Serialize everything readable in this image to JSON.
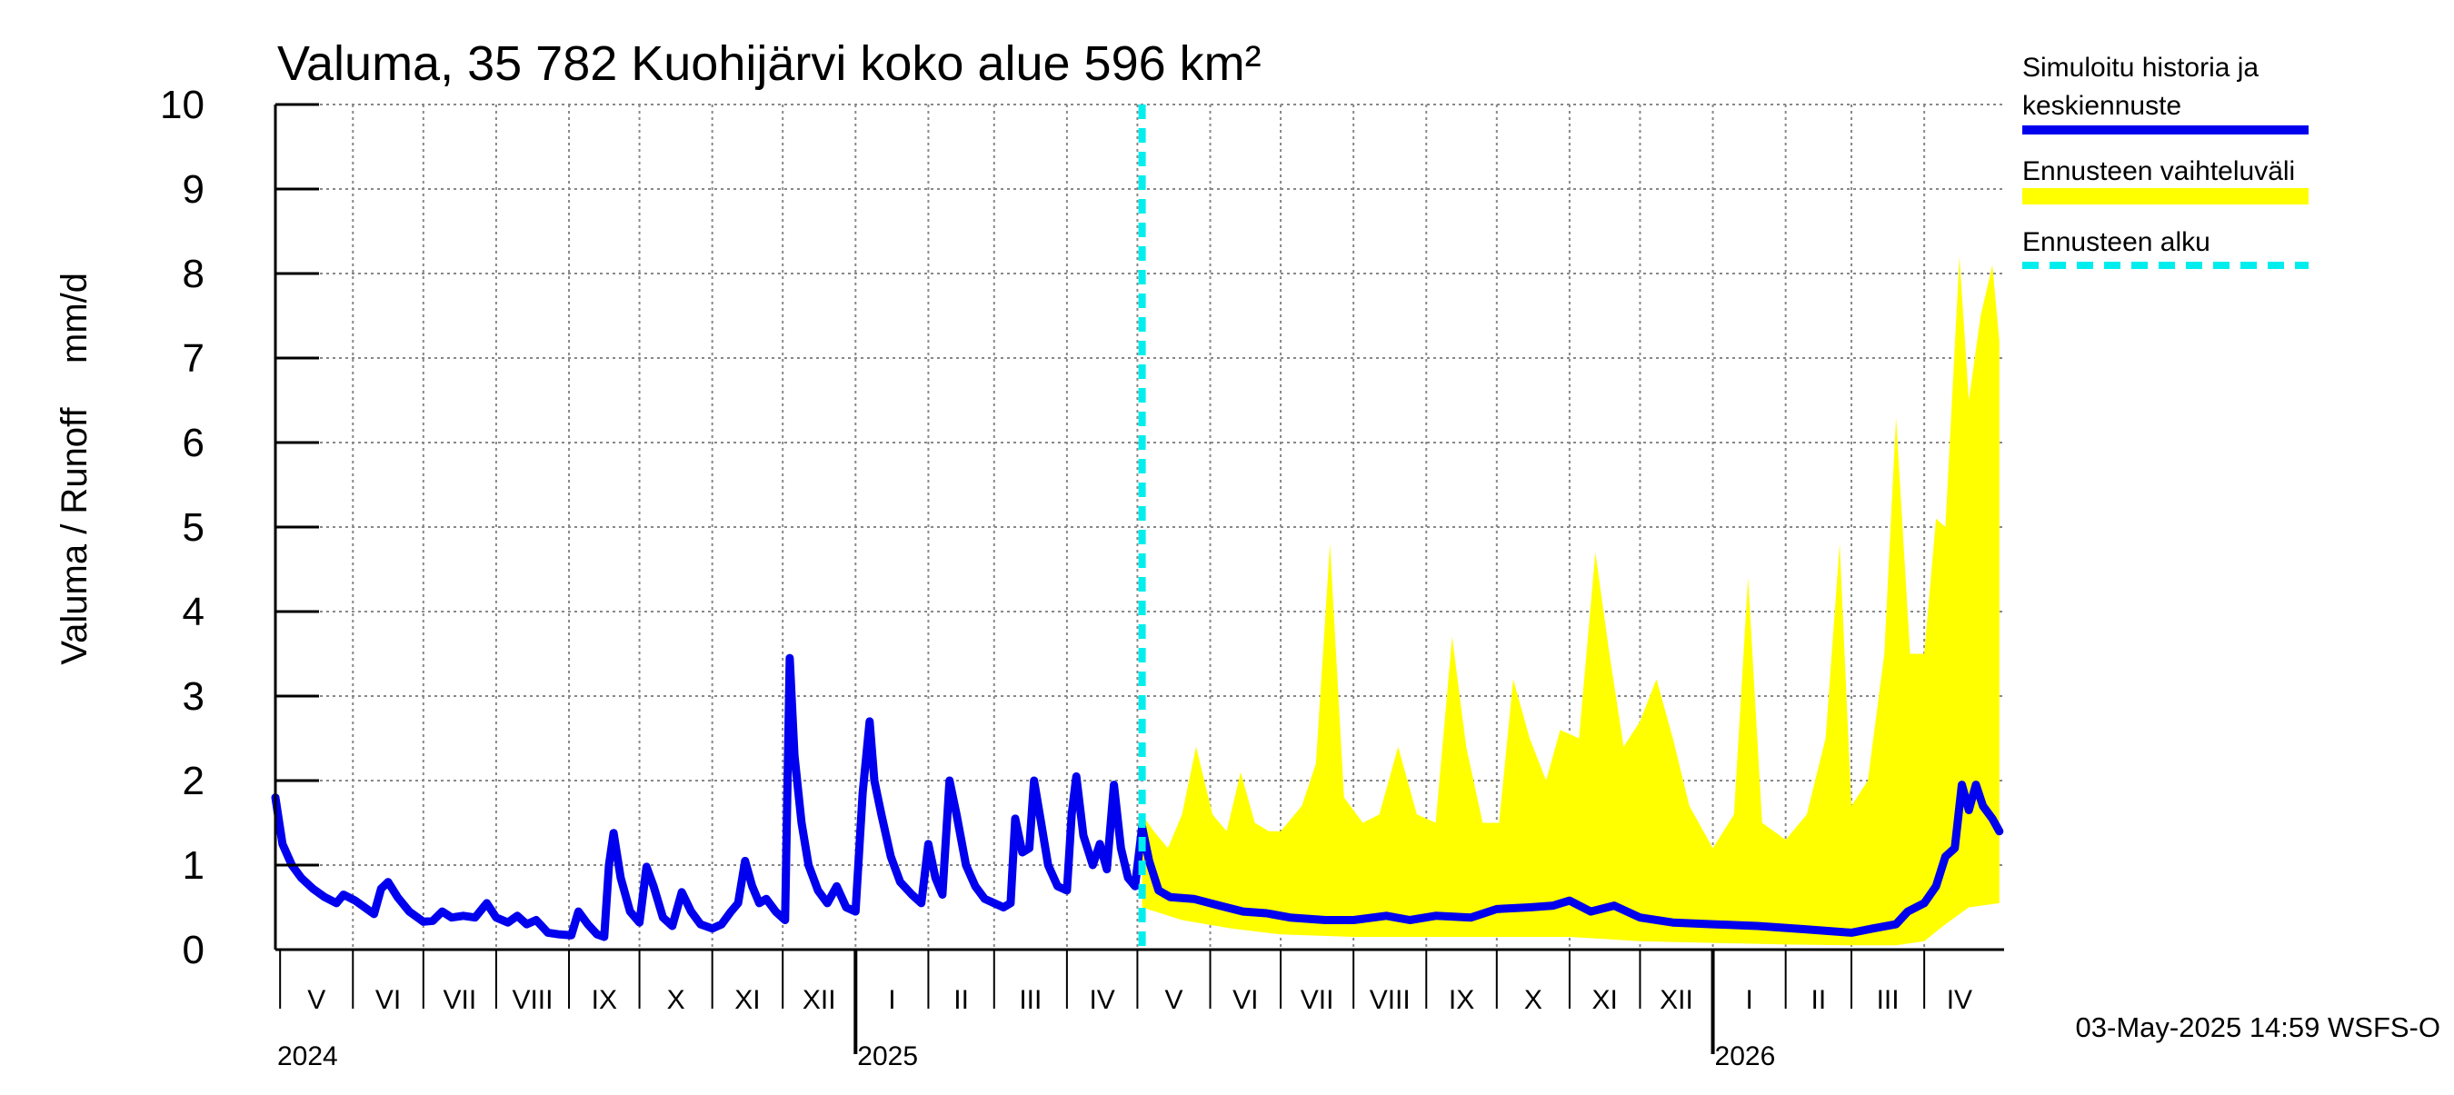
{
  "colors": {
    "history": "#0000ee",
    "range": "#ffff00",
    "forecast_start": "#00eeee",
    "grid": "#888888"
  },
  "chart_data": {
    "type": "line",
    "title": "Valuma, 35 782 Kuohijärvi koko alue 596 km²",
    "ylabel_left": "Valuma / Runoff",
    "ylabel_right": "mm/d",
    "ylim": [
      0,
      10
    ],
    "yticks": [
      0,
      1,
      2,
      3,
      4,
      5,
      6,
      7,
      8,
      9,
      10
    ],
    "xlim": [
      "2024-04-29",
      "2026-05-05"
    ],
    "grid": true,
    "legend_position": "right",
    "month_ticks": [
      {
        "label": "V",
        "start": "2024-05-01",
        "end": "2024-06-01"
      },
      {
        "label": "VI",
        "start": "2024-06-01",
        "end": "2024-07-01"
      },
      {
        "label": "VII",
        "start": "2024-07-01",
        "end": "2024-08-01"
      },
      {
        "label": "VIII",
        "start": "2024-08-01",
        "end": "2024-09-01"
      },
      {
        "label": "IX",
        "start": "2024-09-01",
        "end": "2024-10-01"
      },
      {
        "label": "X",
        "start": "2024-10-01",
        "end": "2024-11-01"
      },
      {
        "label": "XI",
        "start": "2024-11-01",
        "end": "2024-12-01"
      },
      {
        "label": "XII",
        "start": "2024-12-01",
        "end": "2025-01-01"
      },
      {
        "label": "I",
        "start": "2025-01-01",
        "end": "2025-02-01"
      },
      {
        "label": "II",
        "start": "2025-02-01",
        "end": "2025-03-01"
      },
      {
        "label": "III",
        "start": "2025-03-01",
        "end": "2025-04-01"
      },
      {
        "label": "IV",
        "start": "2025-04-01",
        "end": "2025-05-01"
      },
      {
        "label": "V",
        "start": "2025-05-01",
        "end": "2025-06-01"
      },
      {
        "label": "VI",
        "start": "2025-06-01",
        "end": "2025-07-01"
      },
      {
        "label": "VII",
        "start": "2025-07-01",
        "end": "2025-08-01"
      },
      {
        "label": "VIII",
        "start": "2025-08-01",
        "end": "2025-09-01"
      },
      {
        "label": "IX",
        "start": "2025-09-01",
        "end": "2025-10-01"
      },
      {
        "label": "X",
        "start": "2025-10-01",
        "end": "2025-11-01"
      },
      {
        "label": "XI",
        "start": "2025-11-01",
        "end": "2025-12-01"
      },
      {
        "label": "XII",
        "start": "2025-12-01",
        "end": "2026-01-01"
      },
      {
        "label": "I",
        "start": "2026-01-01",
        "end": "2026-02-01"
      },
      {
        "label": "II",
        "start": "2026-02-01",
        "end": "2026-03-01"
      },
      {
        "label": "III",
        "start": "2026-03-01",
        "end": "2026-04-01"
      },
      {
        "label": "IV",
        "start": "2026-04-01",
        "end": "2026-05-01"
      }
    ],
    "year_ticks": [
      {
        "label": "2024",
        "date": "2024-04-29"
      },
      {
        "label": "2025",
        "date": "2025-01-01"
      },
      {
        "label": "2026",
        "date": "2026-01-01"
      }
    ],
    "forecast_start": "2025-05-03",
    "series": [
      {
        "name": "Simuloitu historia ja keskiennuste",
        "kind": "line",
        "points": [
          [
            "2024-04-29",
            1.8
          ],
          [
            "2024-05-02",
            1.25
          ],
          [
            "2024-05-06",
            1.0
          ],
          [
            "2024-05-10",
            0.85
          ],
          [
            "2024-05-15",
            0.72
          ],
          [
            "2024-05-20",
            0.62
          ],
          [
            "2024-05-25",
            0.55
          ],
          [
            "2024-05-28",
            0.65
          ],
          [
            "2024-06-02",
            0.58
          ],
          [
            "2024-06-06",
            0.5
          ],
          [
            "2024-06-10",
            0.42
          ],
          [
            "2024-06-13",
            0.72
          ],
          [
            "2024-06-16",
            0.8
          ],
          [
            "2024-06-20",
            0.62
          ],
          [
            "2024-06-25",
            0.45
          ],
          [
            "2024-07-01",
            0.33
          ],
          [
            "2024-07-05",
            0.34
          ],
          [
            "2024-07-09",
            0.45
          ],
          [
            "2024-07-13",
            0.38
          ],
          [
            "2024-07-18",
            0.4
          ],
          [
            "2024-07-23",
            0.38
          ],
          [
            "2024-07-28",
            0.55
          ],
          [
            "2024-08-01",
            0.38
          ],
          [
            "2024-08-06",
            0.32
          ],
          [
            "2024-08-10",
            0.4
          ],
          [
            "2024-08-14",
            0.3
          ],
          [
            "2024-08-18",
            0.35
          ],
          [
            "2024-08-23",
            0.2
          ],
          [
            "2024-08-28",
            0.18
          ],
          [
            "2024-09-02",
            0.17
          ],
          [
            "2024-09-05",
            0.45
          ],
          [
            "2024-09-09",
            0.3
          ],
          [
            "2024-09-13",
            0.18
          ],
          [
            "2024-09-16",
            0.15
          ],
          [
            "2024-09-18",
            1.0
          ],
          [
            "2024-09-20",
            1.38
          ],
          [
            "2024-09-23",
            0.85
          ],
          [
            "2024-09-27",
            0.45
          ],
          [
            "2024-10-01",
            0.32
          ],
          [
            "2024-10-04",
            0.98
          ],
          [
            "2024-10-07",
            0.75
          ],
          [
            "2024-10-11",
            0.38
          ],
          [
            "2024-10-15",
            0.28
          ],
          [
            "2024-10-19",
            0.68
          ],
          [
            "2024-10-23",
            0.45
          ],
          [
            "2024-10-27",
            0.3
          ],
          [
            "2024-11-01",
            0.25
          ],
          [
            "2024-11-05",
            0.3
          ],
          [
            "2024-11-09",
            0.45
          ],
          [
            "2024-11-12",
            0.55
          ],
          [
            "2024-11-15",
            1.05
          ],
          [
            "2024-11-18",
            0.75
          ],
          [
            "2024-11-21",
            0.55
          ],
          [
            "2024-11-24",
            0.6
          ],
          [
            "2024-11-28",
            0.45
          ],
          [
            "2024-12-02",
            0.35
          ],
          [
            "2024-12-04",
            3.45
          ],
          [
            "2024-12-06",
            2.3
          ],
          [
            "2024-12-09",
            1.5
          ],
          [
            "2024-12-12",
            1.0
          ],
          [
            "2024-12-16",
            0.7
          ],
          [
            "2024-12-20",
            0.55
          ],
          [
            "2024-12-24",
            0.75
          ],
          [
            "2024-12-28",
            0.5
          ],
          [
            "2025-01-01",
            0.45
          ],
          [
            "2025-01-04",
            1.85
          ],
          [
            "2025-01-07",
            2.7
          ],
          [
            "2025-01-09",
            2.0
          ],
          [
            "2025-01-12",
            1.6
          ],
          [
            "2025-01-16",
            1.1
          ],
          [
            "2025-01-20",
            0.8
          ],
          [
            "2025-01-25",
            0.65
          ],
          [
            "2025-01-29",
            0.55
          ],
          [
            "2025-02-01",
            1.25
          ],
          [
            "2025-02-04",
            0.85
          ],
          [
            "2025-02-07",
            0.65
          ],
          [
            "2025-02-10",
            2.0
          ],
          [
            "2025-02-13",
            1.6
          ],
          [
            "2025-02-17",
            1.0
          ],
          [
            "2025-02-21",
            0.75
          ],
          [
            "2025-02-25",
            0.6
          ],
          [
            "2025-03-01",
            0.55
          ],
          [
            "2025-03-05",
            0.5
          ],
          [
            "2025-03-08",
            0.55
          ],
          [
            "2025-03-10",
            1.55
          ],
          [
            "2025-03-13",
            1.15
          ],
          [
            "2025-03-16",
            1.2
          ],
          [
            "2025-03-18",
            2.0
          ],
          [
            "2025-03-21",
            1.5
          ],
          [
            "2025-03-24",
            1.0
          ],
          [
            "2025-03-28",
            0.75
          ],
          [
            "2025-04-01",
            0.7
          ],
          [
            "2025-04-03",
            1.6
          ],
          [
            "2025-04-05",
            2.05
          ],
          [
            "2025-04-08",
            1.35
          ],
          [
            "2025-04-12",
            1.0
          ],
          [
            "2025-04-15",
            1.25
          ],
          [
            "2025-04-18",
            0.95
          ],
          [
            "2025-04-21",
            1.95
          ],
          [
            "2025-04-24",
            1.2
          ],
          [
            "2025-04-27",
            0.85
          ],
          [
            "2025-04-30",
            0.75
          ],
          [
            "2025-05-03",
            1.45
          ],
          [
            "2025-05-06",
            1.05
          ],
          [
            "2025-05-10",
            0.7
          ],
          [
            "2025-05-15",
            0.62
          ],
          [
            "2025-05-25",
            0.6
          ],
          [
            "2025-06-05",
            0.52
          ],
          [
            "2025-06-15",
            0.45
          ],
          [
            "2025-06-25",
            0.43
          ],
          [
            "2025-07-05",
            0.38
          ],
          [
            "2025-07-20",
            0.35
          ],
          [
            "2025-08-01",
            0.35
          ],
          [
            "2025-08-15",
            0.4
          ],
          [
            "2025-08-25",
            0.35
          ],
          [
            "2025-09-05",
            0.4
          ],
          [
            "2025-09-20",
            0.38
          ],
          [
            "2025-10-01",
            0.48
          ],
          [
            "2025-10-15",
            0.5
          ],
          [
            "2025-10-25",
            0.52
          ],
          [
            "2025-11-01",
            0.58
          ],
          [
            "2025-11-10",
            0.45
          ],
          [
            "2025-11-20",
            0.52
          ],
          [
            "2025-12-01",
            0.38
          ],
          [
            "2025-12-15",
            0.32
          ],
          [
            "2026-01-01",
            0.3
          ],
          [
            "2026-01-20",
            0.28
          ],
          [
            "2026-02-10",
            0.24
          ],
          [
            "2026-03-01",
            0.2
          ],
          [
            "2026-03-10",
            0.25
          ],
          [
            "2026-03-20",
            0.3
          ],
          [
            "2026-03-25",
            0.45
          ],
          [
            "2026-04-01",
            0.55
          ],
          [
            "2026-04-06",
            0.75
          ],
          [
            "2026-04-10",
            1.1
          ],
          [
            "2026-04-14",
            1.2
          ],
          [
            "2026-04-17",
            1.95
          ],
          [
            "2026-04-20",
            1.65
          ],
          [
            "2026-04-23",
            1.95
          ],
          [
            "2026-04-26",
            1.7
          ],
          [
            "2026-04-30",
            1.55
          ],
          [
            "2026-05-03",
            1.4
          ]
        ]
      },
      {
        "name": "Ennusteen vaihteluväli",
        "kind": "band",
        "upper": [
          [
            "2025-05-03",
            1.6
          ],
          [
            "2025-05-08",
            1.4
          ],
          [
            "2025-05-14",
            1.2
          ],
          [
            "2025-05-20",
            1.6
          ],
          [
            "2025-05-26",
            2.4
          ],
          [
            "2025-06-02",
            1.6
          ],
          [
            "2025-06-08",
            1.4
          ],
          [
            "2025-06-14",
            2.1
          ],
          [
            "2025-06-20",
            1.5
          ],
          [
            "2025-06-26",
            1.4
          ],
          [
            "2025-07-01",
            1.4
          ],
          [
            "2025-07-10",
            1.7
          ],
          [
            "2025-07-16",
            2.2
          ],
          [
            "2025-07-22",
            4.8
          ],
          [
            "2025-07-28",
            1.8
          ],
          [
            "2025-08-05",
            1.5
          ],
          [
            "2025-08-12",
            1.6
          ],
          [
            "2025-08-20",
            2.4
          ],
          [
            "2025-08-28",
            1.6
          ],
          [
            "2025-09-05",
            1.5
          ],
          [
            "2025-09-12",
            3.7
          ],
          [
            "2025-09-18",
            2.4
          ],
          [
            "2025-09-25",
            1.5
          ],
          [
            "2025-10-02",
            1.5
          ],
          [
            "2025-10-08",
            3.2
          ],
          [
            "2025-10-15",
            2.5
          ],
          [
            "2025-10-22",
            2.0
          ],
          [
            "2025-10-28",
            2.6
          ],
          [
            "2025-11-05",
            2.5
          ],
          [
            "2025-11-12",
            4.7
          ],
          [
            "2025-11-18",
            3.5
          ],
          [
            "2025-11-24",
            2.4
          ],
          [
            "2025-12-01",
            2.7
          ],
          [
            "2025-12-08",
            3.2
          ],
          [
            "2025-12-15",
            2.5
          ],
          [
            "2025-12-22",
            1.7
          ],
          [
            "2026-01-01",
            1.2
          ],
          [
            "2026-01-10",
            1.6
          ],
          [
            "2026-01-16",
            4.4
          ],
          [
            "2026-01-22",
            1.5
          ],
          [
            "2026-02-01",
            1.3
          ],
          [
            "2026-02-10",
            1.6
          ],
          [
            "2026-02-18",
            2.5
          ],
          [
            "2026-02-24",
            4.8
          ],
          [
            "2026-03-01",
            1.7
          ],
          [
            "2026-03-08",
            2.0
          ],
          [
            "2026-03-15",
            3.5
          ],
          [
            "2026-03-20",
            6.3
          ],
          [
            "2026-03-26",
            3.5
          ],
          [
            "2026-04-01",
            3.5
          ],
          [
            "2026-04-06",
            5.1
          ],
          [
            "2026-04-10",
            5.0
          ],
          [
            "2026-04-16",
            8.2
          ],
          [
            "2026-04-20",
            6.5
          ],
          [
            "2026-04-25",
            7.5
          ],
          [
            "2026-04-30",
            8.1
          ],
          [
            "2026-05-03",
            7.2
          ]
        ],
        "lower": [
          [
            "2025-05-03",
            0.5
          ],
          [
            "2025-05-20",
            0.35
          ],
          [
            "2025-06-10",
            0.25
          ],
          [
            "2025-07-01",
            0.18
          ],
          [
            "2025-08-01",
            0.15
          ],
          [
            "2025-09-01",
            0.15
          ],
          [
            "2025-10-01",
            0.15
          ],
          [
            "2025-11-01",
            0.15
          ],
          [
            "2025-12-01",
            0.1
          ],
          [
            "2026-01-01",
            0.08
          ],
          [
            "2026-02-01",
            0.06
          ],
          [
            "2026-03-01",
            0.05
          ],
          [
            "2026-03-20",
            0.05
          ],
          [
            "2026-04-01",
            0.1
          ],
          [
            "2026-04-10",
            0.3
          ],
          [
            "2026-04-20",
            0.5
          ],
          [
            "2026-05-03",
            0.55
          ]
        ]
      },
      {
        "name": "Ennusteen alku",
        "kind": "vline"
      }
    ]
  },
  "legend": {
    "history_label_line1": "Simuloitu historia ja",
    "history_label_line2": "keskiennuste",
    "range_label": "Ennusteen vaihteluväli",
    "forecast_start_label": "Ennusteen alku"
  },
  "footer": {
    "timestamp": "03-May-2025 14:59 WSFS-O"
  }
}
